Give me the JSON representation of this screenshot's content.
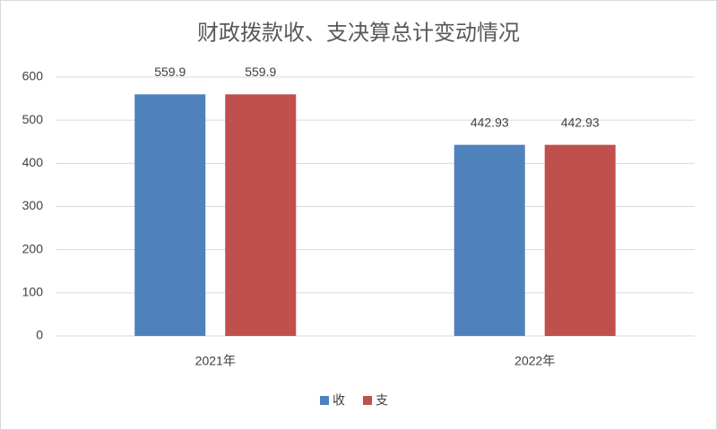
{
  "chart_data": {
    "type": "bar",
    "title": "财政拨款收、支决算总计变动情况",
    "categories": [
      "2021年",
      "2022年"
    ],
    "series": [
      {
        "name": "收",
        "color": "#4f81bd",
        "values": [
          559.9,
          442.93
        ]
      },
      {
        "name": "支",
        "color": "#c0504d",
        "values": [
          559.9,
          442.93
        ]
      }
    ],
    "ylim": [
      0,
      600
    ],
    "yticks": [
      0,
      100,
      200,
      300,
      400,
      500,
      600
    ],
    "grid": true,
    "legend": "bottom"
  }
}
